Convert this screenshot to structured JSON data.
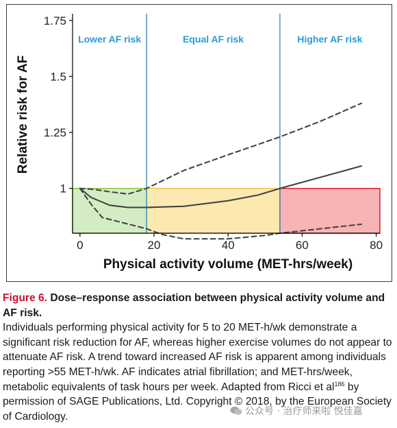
{
  "chart_data": {
    "type": "line",
    "xlabel": "Physical activity volume (MET-hrs/week)",
    "ylabel": "Relative risk for AF",
    "xlim": [
      -2,
      81
    ],
    "ylim": [
      0.8,
      1.78
    ],
    "x_ticks": [
      0,
      20,
      40,
      60,
      80
    ],
    "x_tick_labels": [
      "0",
      "20",
      "40",
      "60",
      "80"
    ],
    "y_ticks": [
      1,
      1.25,
      1.5,
      1.75
    ],
    "y_tick_labels": [
      "1",
      "1.25",
      "1.5",
      "1.75"
    ],
    "grid": false,
    "regions": [
      {
        "label": "Lower AF risk",
        "x_start": -2,
        "x_end": 18,
        "y_top": 1.0,
        "fill": "#d4ecc4",
        "edge": "#8cc63f"
      },
      {
        "label": "Equal AF risk",
        "x_start": 18,
        "x_end": 54,
        "y_top": 1.0,
        "fill": "#fbe9b0",
        "edge": "#e9c94a"
      },
      {
        "label": "Higher AF risk",
        "x_start": 54,
        "x_end": 81,
        "y_top": 1.0,
        "fill": "#f7b3b6",
        "edge": "#d9232e"
      }
    ],
    "boundaries": [
      18,
      54
    ],
    "boundary_color": "#3a8fc7",
    "region_label_color": "#2a9ad6",
    "series": [
      {
        "style": "solid",
        "x": [
          0,
          3,
          8,
          13,
          18,
          28,
          40,
          48,
          54,
          65,
          76
        ],
        "values": [
          1.0,
          0.96,
          0.925,
          0.915,
          0.915,
          0.92,
          0.945,
          0.97,
          1.0,
          1.05,
          1.1
        ]
      },
      {
        "style": "dashed",
        "role": "upper",
        "x": [
          0,
          4,
          8,
          13,
          18,
          28,
          40,
          54,
          65,
          76
        ],
        "values": [
          1.0,
          0.995,
          0.985,
          0.975,
          1.0,
          1.08,
          1.15,
          1.23,
          1.3,
          1.38
        ]
      },
      {
        "style": "dashed",
        "role": "lower",
        "x": [
          0,
          3,
          6,
          12,
          18,
          22,
          28,
          40,
          50,
          54,
          65,
          76
        ],
        "values": [
          1.0,
          0.93,
          0.87,
          0.845,
          0.82,
          0.795,
          0.775,
          0.775,
          0.79,
          0.8,
          0.82,
          0.84
        ]
      }
    ]
  },
  "caption": {
    "figure_number": "Figure 6.",
    "title": "Dose–response association between physical activity volume and AF risk.",
    "body_part1": "Individuals performing physical activity for 5 to 20 MET-h/wk demonstrate a significant risk reduction for AF, whereas higher exercise volumes do not appear to attenuate AF risk. A trend toward increased AF risk is apparent among individuals reporting >55 MET-h/wk. AF indicates atrial fibrillation; and MET-hrs/week, metabolic equivalents of task hours per week. Adapted from Ricci et al",
    "reference_sup": "186",
    "body_part2": " by permission of SAGE Publications, Ltd. Copyright © 2018, by the European Society of Cardiology."
  },
  "watermark": {
    "text": "公众号 · 治疗师来啦  悦佳嘉"
  }
}
